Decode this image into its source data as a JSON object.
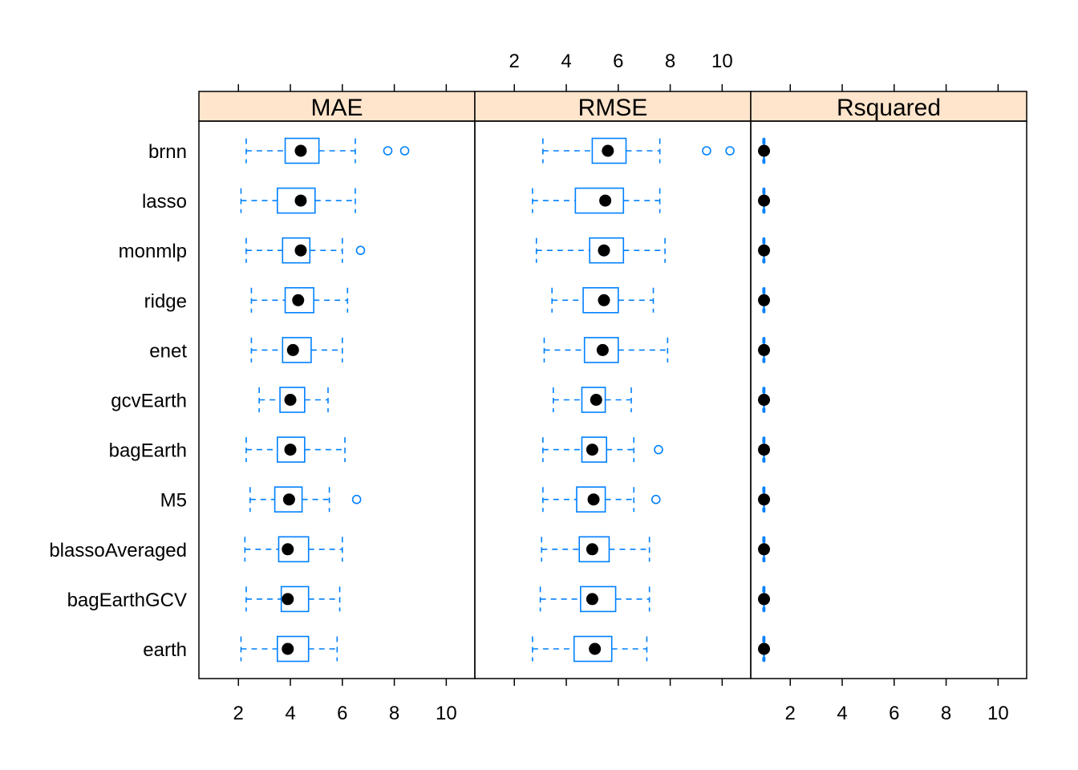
{
  "chart_data": {
    "type": "boxplot",
    "xlim": [
      0.48,
      11.1
    ],
    "x_ticks": [
      2,
      4,
      6,
      8,
      10
    ],
    "colors": {
      "strip": "#FFE5CC",
      "box": "#0080FF",
      "median": "#000000",
      "frame": "#000000"
    },
    "categories": [
      "brnn",
      "lasso",
      "monmlp",
      "ridge",
      "enet",
      "gcvEarth",
      "bagEarth",
      "M5",
      "blassoAveraged",
      "bagEarthGCV",
      "earth"
    ],
    "panels": [
      {
        "name": "MAE",
        "boxes": [
          {
            "category": "brnn",
            "min": 2.3,
            "q1": 3.8,
            "median": 4.4,
            "q3": 5.1,
            "max": 6.5,
            "outliers": [
              7.75,
              8.4
            ]
          },
          {
            "category": "lasso",
            "min": 2.1,
            "q1": 3.5,
            "median": 4.4,
            "q3": 4.95,
            "max": 6.5,
            "outliers": []
          },
          {
            "category": "monmlp",
            "min": 2.3,
            "q1": 3.7,
            "median": 4.4,
            "q3": 4.75,
            "max": 6.0,
            "outliers": [
              6.7
            ]
          },
          {
            "category": "ridge",
            "min": 2.5,
            "q1": 3.8,
            "median": 4.3,
            "q3": 4.9,
            "max": 6.2,
            "outliers": []
          },
          {
            "category": "enet",
            "min": 2.5,
            "q1": 3.7,
            "median": 4.1,
            "q3": 4.8,
            "max": 6.0,
            "outliers": []
          },
          {
            "category": "gcvEarth",
            "min": 2.8,
            "q1": 3.6,
            "median": 4.0,
            "q3": 4.55,
            "max": 5.45,
            "outliers": []
          },
          {
            "category": "bagEarth",
            "min": 2.3,
            "q1": 3.5,
            "median": 4.0,
            "q3": 4.55,
            "max": 6.1,
            "outliers": []
          },
          {
            "category": "M5",
            "min": 2.45,
            "q1": 3.4,
            "median": 3.95,
            "q3": 4.45,
            "max": 5.5,
            "outliers": [
              6.55
            ]
          },
          {
            "category": "blassoAveraged",
            "min": 2.25,
            "q1": 3.55,
            "median": 3.9,
            "q3": 4.7,
            "max": 6.0,
            "outliers": []
          },
          {
            "category": "bagEarthGCV",
            "min": 2.3,
            "q1": 3.65,
            "median": 3.9,
            "q3": 4.7,
            "max": 5.9,
            "outliers": []
          },
          {
            "category": "earth",
            "min": 2.1,
            "q1": 3.5,
            "median": 3.9,
            "q3": 4.7,
            "max": 5.8,
            "outliers": []
          }
        ]
      },
      {
        "name": "RMSE",
        "boxes": [
          {
            "category": "brnn",
            "min": 3.1,
            "q1": 5.0,
            "median": 5.6,
            "q3": 6.3,
            "max": 7.6,
            "outliers": [
              9.4,
              10.3
            ]
          },
          {
            "category": "lasso",
            "min": 2.7,
            "q1": 4.35,
            "median": 5.5,
            "q3": 6.2,
            "max": 7.6,
            "outliers": []
          },
          {
            "category": "monmlp",
            "min": 2.85,
            "q1": 4.9,
            "median": 5.45,
            "q3": 6.2,
            "max": 7.8,
            "outliers": []
          },
          {
            "category": "ridge",
            "min": 3.45,
            "q1": 4.65,
            "median": 5.45,
            "q3": 6.0,
            "max": 7.35,
            "outliers": []
          },
          {
            "category": "enet",
            "min": 3.15,
            "q1": 4.7,
            "median": 5.4,
            "q3": 6.0,
            "max": 7.9,
            "outliers": []
          },
          {
            "category": "gcvEarth",
            "min": 3.5,
            "q1": 4.6,
            "median": 5.15,
            "q3": 5.5,
            "max": 6.5,
            "outliers": []
          },
          {
            "category": "bagEarth",
            "min": 3.1,
            "q1": 4.6,
            "median": 5.0,
            "q3": 5.55,
            "max": 6.6,
            "outliers": [
              7.55
            ]
          },
          {
            "category": "M5",
            "min": 3.1,
            "q1": 4.4,
            "median": 5.05,
            "q3": 5.5,
            "max": 6.6,
            "outliers": [
              7.45
            ]
          },
          {
            "category": "blassoAveraged",
            "min": 3.05,
            "q1": 4.5,
            "median": 5.0,
            "q3": 5.65,
            "max": 7.2,
            "outliers": []
          },
          {
            "category": "bagEarthGCV",
            "min": 3.0,
            "q1": 4.55,
            "median": 5.0,
            "q3": 5.9,
            "max": 7.2,
            "outliers": []
          },
          {
            "category": "earth",
            "min": 2.7,
            "q1": 4.3,
            "median": 5.1,
            "q3": 5.75,
            "max": 7.1,
            "outliers": []
          }
        ]
      },
      {
        "name": "Rsquared",
        "boxes": [
          {
            "category": "brnn",
            "min": 0.95,
            "q1": 0.98,
            "median": 0.99,
            "q3": 1.0,
            "max": 1.02,
            "outliers": []
          },
          {
            "category": "lasso",
            "min": 0.95,
            "q1": 0.98,
            "median": 0.99,
            "q3": 1.0,
            "max": 1.02,
            "outliers": []
          },
          {
            "category": "monmlp",
            "min": 0.95,
            "q1": 0.98,
            "median": 0.99,
            "q3": 1.0,
            "max": 1.02,
            "outliers": []
          },
          {
            "category": "ridge",
            "min": 0.95,
            "q1": 0.98,
            "median": 0.99,
            "q3": 1.0,
            "max": 1.02,
            "outliers": []
          },
          {
            "category": "enet",
            "min": 0.95,
            "q1": 0.98,
            "median": 0.99,
            "q3": 1.0,
            "max": 1.02,
            "outliers": []
          },
          {
            "category": "gcvEarth",
            "min": 0.95,
            "q1": 0.98,
            "median": 0.99,
            "q3": 1.0,
            "max": 1.02,
            "outliers": []
          },
          {
            "category": "bagEarth",
            "min": 0.95,
            "q1": 0.98,
            "median": 0.99,
            "q3": 1.0,
            "max": 1.02,
            "outliers": []
          },
          {
            "category": "M5",
            "min": 0.95,
            "q1": 0.98,
            "median": 0.99,
            "q3": 1.0,
            "max": 1.02,
            "outliers": []
          },
          {
            "category": "blassoAveraged",
            "min": 0.95,
            "q1": 0.98,
            "median": 0.99,
            "q3": 1.0,
            "max": 1.02,
            "outliers": []
          },
          {
            "category": "bagEarthGCV",
            "min": 0.95,
            "q1": 0.98,
            "median": 0.99,
            "q3": 1.0,
            "max": 1.02,
            "outliers": []
          },
          {
            "category": "earth",
            "min": 0.95,
            "q1": 0.98,
            "median": 0.99,
            "q3": 1.0,
            "max": 1.02,
            "outliers": []
          }
        ]
      }
    ]
  }
}
